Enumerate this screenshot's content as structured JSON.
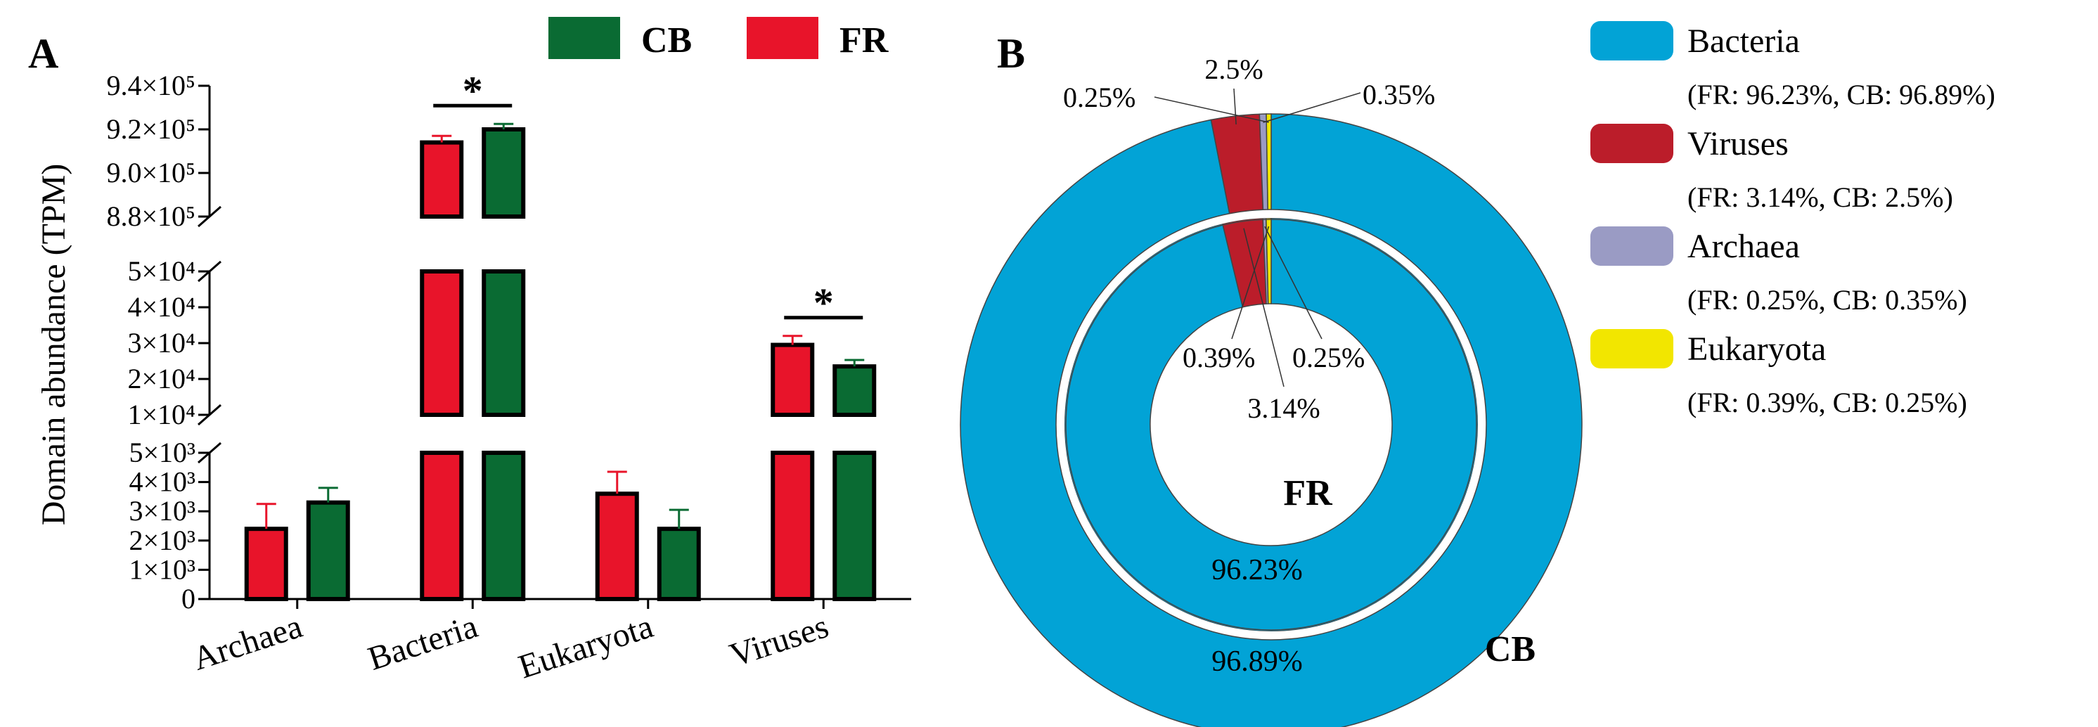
{
  "chart_data": [
    {
      "panel": "A",
      "type": "bar",
      "ylabel": "Domain abundance (TPM)",
      "categories": [
        "Archaea",
        "Bacteria",
        "Eukaryota",
        "Viruses"
      ],
      "series": [
        {
          "name": "FR",
          "color": "#e8142a",
          "values": [
            2400,
            914000,
            3600,
            29500
          ],
          "errors": [
            850,
            3000,
            750,
            2500
          ]
        },
        {
          "name": "CB",
          "color": "#0a6b33",
          "values": [
            3300,
            920000,
            2400,
            23500
          ],
          "errors": [
            500,
            2500,
            650,
            1800
          ]
        }
      ],
      "legend": {
        "position": "top-right",
        "entries": [
          "CB",
          "FR"
        ]
      },
      "axis_segments": [
        {
          "ylim": [
            0,
            5000
          ],
          "ticks": [
            0,
            1000,
            2000,
            3000,
            4000,
            5000
          ],
          "tick_labels": [
            "0",
            "1×10³",
            "2×10³",
            "3×10³",
            "4×10³",
            "5×10³"
          ]
        },
        {
          "ylim": [
            10000,
            50000
          ],
          "ticks": [
            10000,
            20000,
            30000,
            40000,
            50000
          ],
          "tick_labels": [
            "1×10⁴",
            "2×10⁴",
            "3×10⁴",
            "4×10⁴",
            "5×10⁴"
          ]
        },
        {
          "ylim": [
            880000,
            940000
          ],
          "ticks": [
            880000,
            900000,
            920000,
            940000
          ],
          "tick_labels": [
            "8.8×10⁵",
            "9.0×10⁵",
            "9.2×10⁵",
            "9.4×10⁵"
          ]
        }
      ],
      "significance": [
        {
          "category": "Bacteria",
          "label": "*"
        },
        {
          "category": "Viruses",
          "label": "*"
        }
      ]
    },
    {
      "panel": "B",
      "type": "pie",
      "subtype": "nested-donut",
      "rings": [
        {
          "name": "FR",
          "position": "inner",
          "slices": [
            {
              "label": "Bacteria",
              "value": 96.23,
              "color": "#02a3d6",
              "text": "96.23%"
            },
            {
              "label": "Viruses",
              "value": 3.14,
              "color": "#bb1d2a",
              "text": "3.14%"
            },
            {
              "label": "Archaea",
              "value": 0.25,
              "color": "#9a9bc4",
              "text": "0.25%"
            },
            {
              "label": "Eukaryota",
              "value": 0.39,
              "color": "#f2e600",
              "text": "0.39%"
            }
          ]
        },
        {
          "name": "CB",
          "position": "outer",
          "slices": [
            {
              "label": "Bacteria",
              "value": 96.89,
              "color": "#02a3d6",
              "text": "96.89%"
            },
            {
              "label": "Viruses",
              "value": 2.5,
              "color": "#bb1d2a",
              "text": "2.5%"
            },
            {
              "label": "Archaea",
              "value": 0.35,
              "color": "#9a9bc4",
              "text": "0.35%"
            },
            {
              "label": "Eukaryota",
              "value": 0.25,
              "color": "#f2e600",
              "text": "0.25%"
            }
          ]
        }
      ],
      "legend": [
        {
          "name": "Bacteria",
          "detail": "(FR: 96.23%, CB: 96.89%)",
          "color": "#02a3d6"
        },
        {
          "name": "Viruses",
          "detail": "(FR: 3.14%, CB: 2.5%)",
          "color": "#bb1d2a"
        },
        {
          "name": "Archaea",
          "detail": "(FR: 0.25%, CB: 0.35%)",
          "color": "#9a9bc4"
        },
        {
          "name": "Eukaryota",
          "detail": "(FR: 0.39%, CB: 0.25%)",
          "color": "#f2e600"
        }
      ]
    }
  ]
}
